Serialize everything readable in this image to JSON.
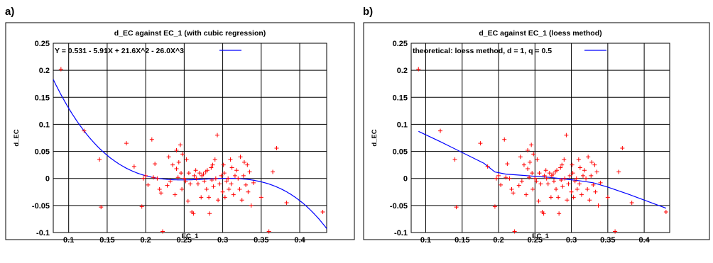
{
  "panels": [
    {
      "letter": "a)"
    },
    {
      "letter": "b)"
    }
  ],
  "chart_data": [
    {
      "type": "scatter",
      "title": "d_EC against EC_1 (with cubic regression)",
      "xlabel": "EC_1",
      "ylabel": "d_EC",
      "xlim": [
        0.08,
        0.435
      ],
      "ylim": [
        -0.1,
        0.25
      ],
      "xticks": [
        "0.1",
        "0.15",
        "0.2",
        "0.25",
        "0.3",
        "0.35",
        "0.4"
      ],
      "yticks": [
        "-0.1",
        "-0.05",
        "0",
        "0.05",
        "0.1",
        "0.15",
        "0.2",
        "0.25"
      ],
      "grid": true,
      "legend_position": "top-left",
      "point_color": "#ff0000",
      "fit_color": "#0000ff",
      "fit_label": "Y = 0.531 - 5.91X + 21.6X^2 - 26.0X^3",
      "fit_coefficients": [
        0.531,
        -5.91,
        21.6,
        -26.0
      ],
      "points": [
        [
          0.09,
          0.202
        ],
        [
          0.12,
          0.088
        ],
        [
          0.14,
          0.035
        ],
        [
          0.142,
          -0.053
        ],
        [
          0.175,
          0.065
        ],
        [
          0.185,
          0.022
        ],
        [
          0.195,
          -0.052
        ],
        [
          0.197,
          0.0
        ],
        [
          0.2,
          0.005
        ],
        [
          0.203,
          -0.012
        ],
        [
          0.208,
          0.072
        ],
        [
          0.21,
          0.002
        ],
        [
          0.212,
          0.027
        ],
        [
          0.215,
          0.0
        ],
        [
          0.218,
          -0.02
        ],
        [
          0.22,
          -0.027
        ],
        [
          0.222,
          -0.098
        ],
        [
          0.228,
          -0.013
        ],
        [
          0.23,
          0.04
        ],
        [
          0.232,
          -0.005
        ],
        [
          0.235,
          0.025
        ],
        [
          0.238,
          -0.03
        ],
        [
          0.24,
          0.018
        ],
        [
          0.24,
          0.052
        ],
        [
          0.242,
          0.002
        ],
        [
          0.243,
          0.03
        ],
        [
          0.245,
          0.062
        ],
        [
          0.246,
          0.01
        ],
        [
          0.247,
          -0.02
        ],
        [
          0.248,
          0.045
        ],
        [
          0.25,
          0.0
        ],
        [
          0.252,
          -0.005
        ],
        [
          0.253,
          0.035
        ],
        [
          0.255,
          -0.042
        ],
        [
          0.256,
          0.01
        ],
        [
          0.258,
          -0.01
        ],
        [
          0.26,
          -0.062
        ],
        [
          0.262,
          -0.065
        ],
        [
          0.263,
          0.005
        ],
        [
          0.265,
          0.015
        ],
        [
          0.266,
          0.0
        ],
        [
          0.268,
          -0.01
        ],
        [
          0.27,
          0.01
        ],
        [
          0.272,
          -0.035
        ],
        [
          0.273,
          0.005
        ],
        [
          0.275,
          0.008
        ],
        [
          0.276,
          -0.005
        ],
        [
          0.278,
          0.012
        ],
        [
          0.279,
          -0.02
        ],
        [
          0.28,
          0.015
        ],
        [
          0.282,
          -0.035
        ],
        [
          0.283,
          -0.065
        ],
        [
          0.285,
          0.02
        ],
        [
          0.286,
          -0.003
        ],
        [
          0.287,
          0.025
        ],
        [
          0.288,
          -0.015
        ],
        [
          0.29,
          0.035
        ],
        [
          0.291,
          0.0
        ],
        [
          0.293,
          0.08
        ],
        [
          0.294,
          -0.04
        ],
        [
          0.296,
          -0.01
        ],
        [
          0.298,
          0.005
        ],
        [
          0.3,
          -0.025
        ],
        [
          0.301,
          0.025
        ],
        [
          0.302,
          0.01
        ],
        [
          0.303,
          -0.035
        ],
        [
          0.305,
          -0.005
        ],
        [
          0.307,
          0.0
        ],
        [
          0.308,
          -0.02
        ],
        [
          0.31,
          0.035
        ],
        [
          0.311,
          -0.01
        ],
        [
          0.312,
          0.02
        ],
        [
          0.314,
          -0.03
        ],
        [
          0.316,
          0.005
        ],
        [
          0.318,
          0.015
        ],
        [
          0.32,
          0.0
        ],
        [
          0.322,
          -0.02
        ],
        [
          0.323,
          0.04
        ],
        [
          0.325,
          -0.04
        ],
        [
          0.327,
          0.005
        ],
        [
          0.328,
          0.03
        ],
        [
          0.33,
          -0.012
        ],
        [
          0.332,
          0.025
        ],
        [
          0.333,
          -0.025
        ],
        [
          0.335,
          0.012
        ],
        [
          0.337,
          -0.05
        ],
        [
          0.34,
          -0.008
        ],
        [
          0.35,
          -0.035
        ],
        [
          0.36,
          -0.098
        ],
        [
          0.365,
          0.012
        ],
        [
          0.37,
          0.056
        ],
        [
          0.383,
          -0.045
        ],
        [
          0.43,
          -0.062
        ]
      ]
    },
    {
      "type": "scatter",
      "title": "d_EC against EC_1 (loess method)",
      "xlabel": "EC_1",
      "ylabel": "d_EC",
      "xlim": [
        0.08,
        0.435
      ],
      "ylim": [
        -0.1,
        0.25
      ],
      "xticks": [
        "0.1",
        "0.15",
        "0.2",
        "0.25",
        "0.3",
        "0.35",
        "0.4"
      ],
      "yticks": [
        "-0.1",
        "-0.05",
        "0",
        "0.05",
        "0.1",
        "0.15",
        "0.2",
        "0.25"
      ],
      "grid": true,
      "legend_position": "top-left",
      "point_color": "#ff0000",
      "fit_color": "#0000ff",
      "fit_label": "theoretical: loess method, d = 1, q = 0.5",
      "fit_curve": [
        [
          0.09,
          0.087
        ],
        [
          0.12,
          0.068
        ],
        [
          0.15,
          0.048
        ],
        [
          0.18,
          0.028
        ],
        [
          0.195,
          0.012
        ],
        [
          0.21,
          0.008
        ],
        [
          0.23,
          0.006
        ],
        [
          0.25,
          0.004
        ],
        [
          0.27,
          0.002
        ],
        [
          0.29,
          -0.001
        ],
        [
          0.31,
          -0.004
        ],
        [
          0.33,
          -0.008
        ],
        [
          0.35,
          -0.016
        ],
        [
          0.38,
          -0.03
        ],
        [
          0.43,
          -0.055
        ]
      ],
      "points": [
        [
          0.09,
          0.202
        ],
        [
          0.12,
          0.088
        ],
        [
          0.14,
          0.035
        ],
        [
          0.142,
          -0.053
        ],
        [
          0.175,
          0.065
        ],
        [
          0.185,
          0.022
        ],
        [
          0.195,
          -0.052
        ],
        [
          0.197,
          0.0
        ],
        [
          0.2,
          0.005
        ],
        [
          0.203,
          -0.012
        ],
        [
          0.208,
          0.072
        ],
        [
          0.21,
          0.002
        ],
        [
          0.212,
          0.027
        ],
        [
          0.215,
          0.0
        ],
        [
          0.218,
          -0.02
        ],
        [
          0.22,
          -0.027
        ],
        [
          0.222,
          -0.098
        ],
        [
          0.228,
          -0.013
        ],
        [
          0.23,
          0.04
        ],
        [
          0.232,
          -0.005
        ],
        [
          0.235,
          0.025
        ],
        [
          0.238,
          -0.03
        ],
        [
          0.24,
          0.018
        ],
        [
          0.24,
          0.052
        ],
        [
          0.242,
          0.002
        ],
        [
          0.243,
          0.03
        ],
        [
          0.245,
          0.062
        ],
        [
          0.246,
          0.01
        ],
        [
          0.247,
          -0.02
        ],
        [
          0.248,
          0.045
        ],
        [
          0.25,
          0.0
        ],
        [
          0.252,
          -0.005
        ],
        [
          0.253,
          0.035
        ],
        [
          0.255,
          -0.042
        ],
        [
          0.256,
          0.01
        ],
        [
          0.258,
          -0.01
        ],
        [
          0.26,
          -0.062
        ],
        [
          0.262,
          -0.065
        ],
        [
          0.263,
          0.005
        ],
        [
          0.265,
          0.015
        ],
        [
          0.266,
          0.0
        ],
        [
          0.268,
          -0.01
        ],
        [
          0.27,
          0.01
        ],
        [
          0.272,
          -0.035
        ],
        [
          0.273,
          0.005
        ],
        [
          0.275,
          0.008
        ],
        [
          0.276,
          -0.005
        ],
        [
          0.278,
          0.012
        ],
        [
          0.279,
          -0.02
        ],
        [
          0.28,
          0.015
        ],
        [
          0.282,
          -0.035
        ],
        [
          0.283,
          -0.065
        ],
        [
          0.285,
          0.02
        ],
        [
          0.286,
          -0.003
        ],
        [
          0.287,
          0.025
        ],
        [
          0.288,
          -0.015
        ],
        [
          0.29,
          0.035
        ],
        [
          0.291,
          0.0
        ],
        [
          0.293,
          0.08
        ],
        [
          0.294,
          -0.04
        ],
        [
          0.296,
          -0.01
        ],
        [
          0.298,
          0.005
        ],
        [
          0.3,
          -0.025
        ],
        [
          0.301,
          0.025
        ],
        [
          0.302,
          0.01
        ],
        [
          0.303,
          -0.035
        ],
        [
          0.305,
          -0.005
        ],
        [
          0.307,
          0.0
        ],
        [
          0.308,
          -0.02
        ],
        [
          0.31,
          0.035
        ],
        [
          0.311,
          -0.01
        ],
        [
          0.312,
          0.02
        ],
        [
          0.314,
          -0.03
        ],
        [
          0.316,
          0.005
        ],
        [
          0.318,
          0.015
        ],
        [
          0.32,
          0.0
        ],
        [
          0.322,
          -0.02
        ],
        [
          0.323,
          0.04
        ],
        [
          0.325,
          -0.04
        ],
        [
          0.327,
          0.005
        ],
        [
          0.328,
          0.03
        ],
        [
          0.33,
          -0.012
        ],
        [
          0.332,
          0.025
        ],
        [
          0.333,
          -0.025
        ],
        [
          0.335,
          0.012
        ],
        [
          0.337,
          -0.05
        ],
        [
          0.34,
          -0.008
        ],
        [
          0.35,
          -0.035
        ],
        [
          0.36,
          -0.098
        ],
        [
          0.365,
          0.012
        ],
        [
          0.37,
          0.056
        ],
        [
          0.383,
          -0.045
        ],
        [
          0.43,
          -0.062
        ]
      ]
    }
  ]
}
